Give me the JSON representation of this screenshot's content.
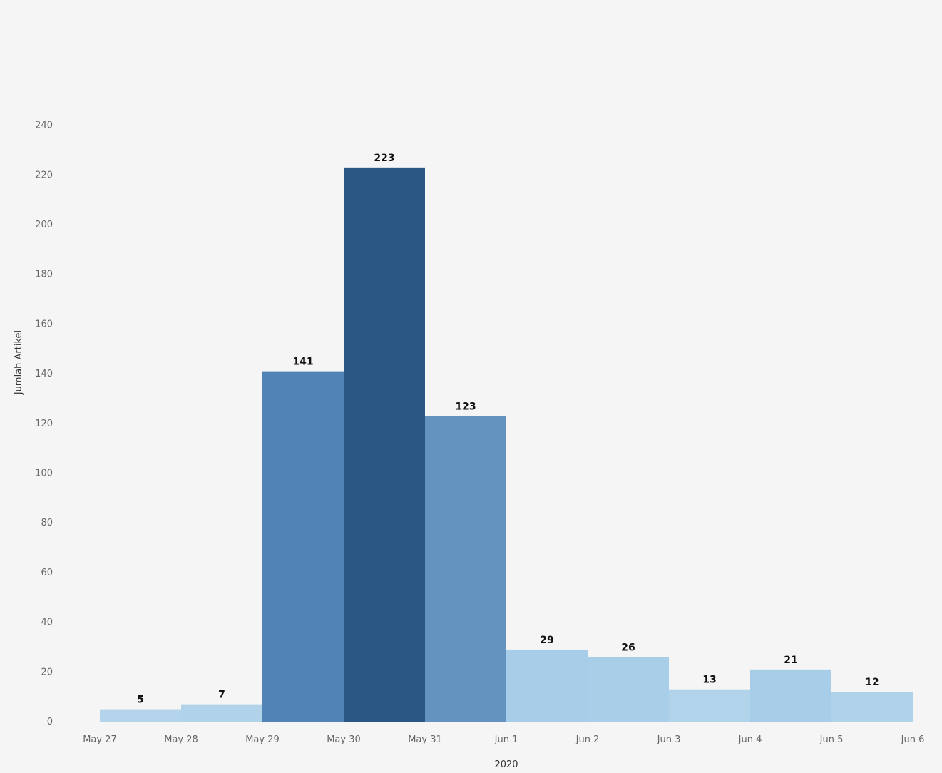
{
  "chart_data": {
    "type": "bar",
    "title": "",
    "xlabel": "2020",
    "ylabel": "Jumlah Artikel",
    "ylim": [
      0,
      240
    ],
    "y_ticks": [
      0,
      20,
      40,
      60,
      80,
      100,
      120,
      140,
      160,
      180,
      200,
      220,
      240
    ],
    "x_tick_labels": [
      "May 27",
      "May 28",
      "May 29",
      "May 30",
      "May 31",
      "Jun 1",
      "Jun 2",
      "Jun 3",
      "Jun 4",
      "Jun 5",
      "Jun 6"
    ],
    "categories": [
      "May 27",
      "May 28",
      "May 29",
      "May 30",
      "May 31",
      "Jun 1",
      "Jun 2",
      "Jun 3",
      "Jun 4",
      "Jun 5"
    ],
    "values": [
      5,
      7,
      141,
      223,
      123,
      29,
      26,
      13,
      21,
      12
    ],
    "bar_colors": [
      "#b3d4ea",
      "#b1d3e9",
      "#5283b6",
      "#2a5784",
      "#6493bf",
      "#a7cde8",
      "#a9cee8",
      "#b2d4ea",
      "#a8cde8",
      "#b1d3e9"
    ],
    "grid": false,
    "legend": "none"
  }
}
